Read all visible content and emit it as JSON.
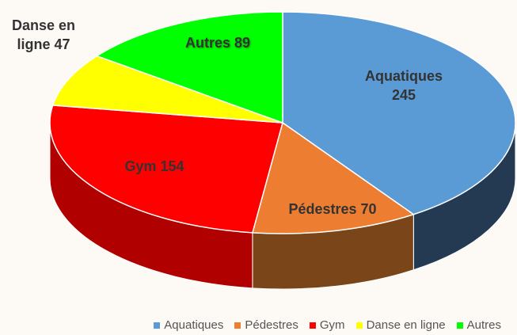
{
  "chart_data": {
    "type": "pie",
    "three_d": true,
    "categories": [
      "Aquatiques",
      "Pédestres",
      "Gym",
      "Danse en ligne",
      "Autres"
    ],
    "values": [
      245,
      70,
      154,
      47,
      89
    ],
    "colors": [
      "#5b9bd5",
      "#ed7d31",
      "#ff0000",
      "#ffff00",
      "#00ff00"
    ],
    "side_colors": [
      "#243a52",
      "#7a4518",
      "#b00000",
      "#a0a000",
      "#00a000"
    ],
    "legend": "bottom"
  }
}
